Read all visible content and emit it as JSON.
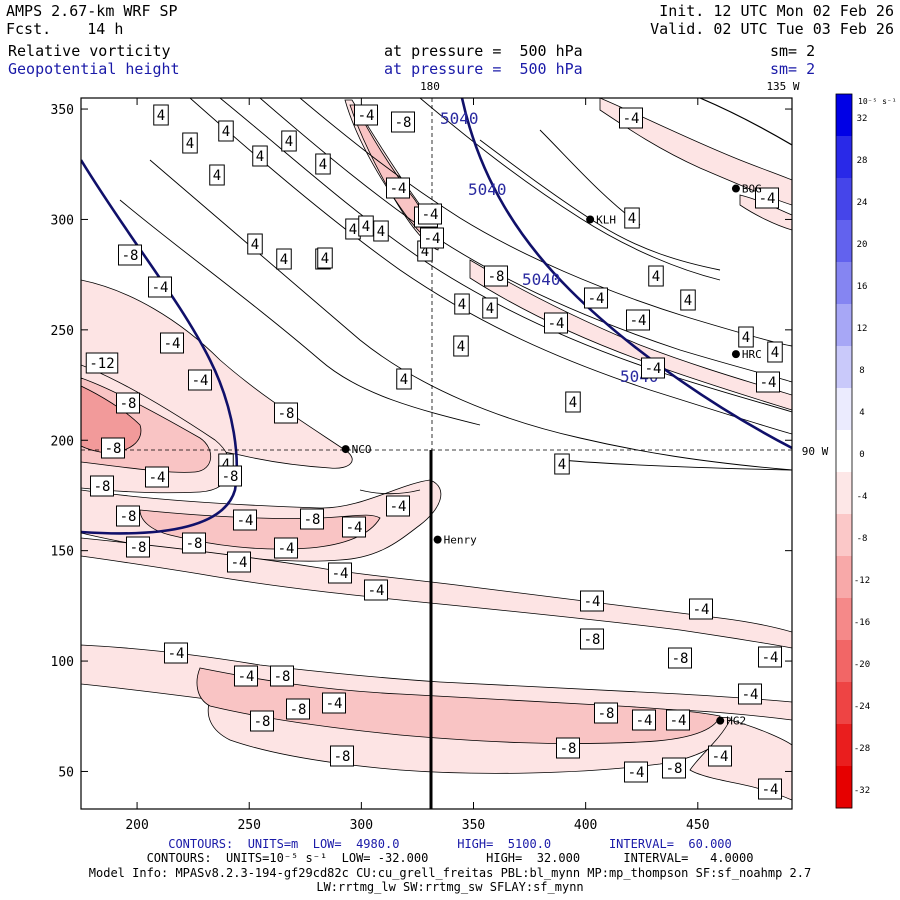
{
  "header": {
    "model": "AMPS 2.67-km WRF SP",
    "fcst_label": "Fcst.",
    "fcst_value": "14 h",
    "init": "Init. 12 UTC Mon 02 Feb 26",
    "valid": "Valid. 02 UTC Tue 03 Feb 26",
    "field1": "Relative vorticity",
    "field2": "Geopotential height",
    "level1": "at pressure =  500 hPa",
    "level2": "at pressure =  500 hPa",
    "sm1": "sm= 2",
    "sm2": "sm= 2"
  },
  "map_labels": {
    "lon_180": "180",
    "lon_135w": "135 W",
    "lon_90w": "90 W"
  },
  "colorbar": {
    "unit": "10⁻⁵ s⁻¹",
    "ticks": [
      "32",
      "28",
      "24",
      "20",
      "16",
      "12",
      "8",
      "4",
      "0",
      "-4",
      "-8",
      "-12",
      "-16",
      "-20",
      "-24",
      "-28",
      "-32"
    ],
    "colors": [
      "#0000e6",
      "#2929e8",
      "#4545ea",
      "#6262ee",
      "#8585f2",
      "#a7a7f6",
      "#c9c9fa",
      "#ebebfe",
      "#ffffff",
      "#fde7e7",
      "#fbc8c8",
      "#f8a9a9",
      "#f58989",
      "#f26666",
      "#ee4444",
      "#ea1e1e",
      "#e60000"
    ]
  },
  "stations": [
    {
      "name": "NCO",
      "x": 293,
      "y": 196
    },
    {
      "name": "Henry",
      "x": 334,
      "y": 155
    },
    {
      "name": "KLH",
      "x": 402,
      "y": 300
    },
    {
      "name": "BOG",
      "x": 467,
      "y": 314
    },
    {
      "name": "HRC",
      "x": 467,
      "y": 239
    },
    {
      "name": "HG2",
      "x": 460,
      "y": 73
    }
  ],
  "height_labels": [
    "5040",
    "5040",
    "5040",
    "5040"
  ],
  "vort_labels_pos": [
    "4",
    "4",
    "4",
    "4",
    "4",
    "4",
    "4",
    "4",
    "4",
    "4",
    "4",
    "4",
    "4",
    "4",
    "4",
    "4",
    "4",
    "4",
    "4",
    "4",
    "4",
    "4",
    "4",
    "4",
    "4",
    "4",
    "4"
  ],
  "vort_labels_neg": [
    "-4",
    "-8",
    "-4",
    "-4",
    "-4",
    "-8",
    "-8",
    "-4",
    "-4",
    "-4",
    "-4",
    "-4",
    "-8",
    "-4",
    "-4",
    "-4",
    "-8",
    "-12",
    "-8",
    "-8",
    "-4",
    "-8",
    "-8",
    "-8",
    "-4",
    "-8",
    "-4",
    "-4",
    "-8",
    "-8",
    "-4",
    "-4",
    "-4",
    "-4",
    "-4",
    "-4",
    "-8",
    "-8",
    "-4",
    "-4",
    "-4",
    "-8",
    "-8",
    "-4",
    "-8",
    "-8",
    "-8",
    "-4",
    "-4",
    "-4",
    "-8",
    "-4",
    "-4",
    "-8",
    "-4",
    "-4",
    "-4"
  ],
  "chart_data": {
    "type": "heatmap",
    "title": "",
    "xlabel": "",
    "ylabel": "",
    "xlim": [
      175,
      492
    ],
    "ylim": [
      33,
      355
    ],
    "x_ticks": [
      200,
      250,
      300,
      350,
      400,
      450
    ],
    "y_ticks": [
      50,
      100,
      150,
      200,
      250,
      300,
      350
    ],
    "cross_section_x": 334
  },
  "footer": {
    "line1_a": "CONTOURS:  UNITS=m  LOW=  4980.0",
    "line1_b": "HIGH=  5100.0",
    "line1_c": "INTERVAL=  60.000",
    "line2": "CONTOURS:  UNITS=10⁻⁵ s⁻¹  LOW= -32.000        HIGH=  32.000      INTERVAL=   4.0000",
    "line3": "Model Info: MPASv8.2.3-194-gf29cd82c CU:cu_grell_freitas PBL:bl_mynn MP:mp_thompson SF:sf_noahmp 2.7",
    "line4": "LW:rrtmg_lw SW:rrtmg_sw SFLAY:sf_mynn"
  }
}
